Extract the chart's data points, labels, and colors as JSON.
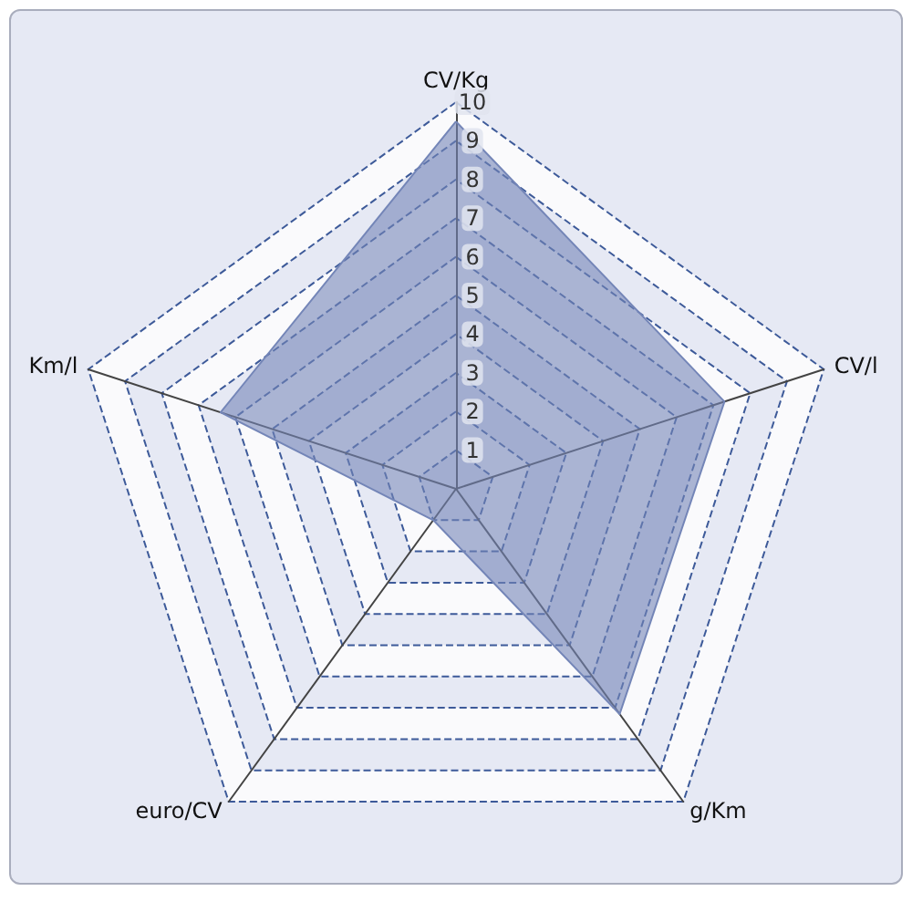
{
  "chart_data": {
    "type": "radar",
    "categories": [
      "CV/Kg",
      "CV/l",
      "g/Km",
      "euro/CV",
      "Km/l"
    ],
    "series": [
      {
        "color": "#7486b8",
        "values": [
          9.5,
          7.3,
          7.2,
          1,
          6.4
        ]
      }
    ],
    "ylim": [
      0,
      10
    ],
    "yticks": [
      1,
      2,
      3,
      4,
      5,
      6,
      7,
      8,
      9,
      10
    ],
    "grid": true,
    "marker": "none",
    "line_style": "solid"
  }
}
